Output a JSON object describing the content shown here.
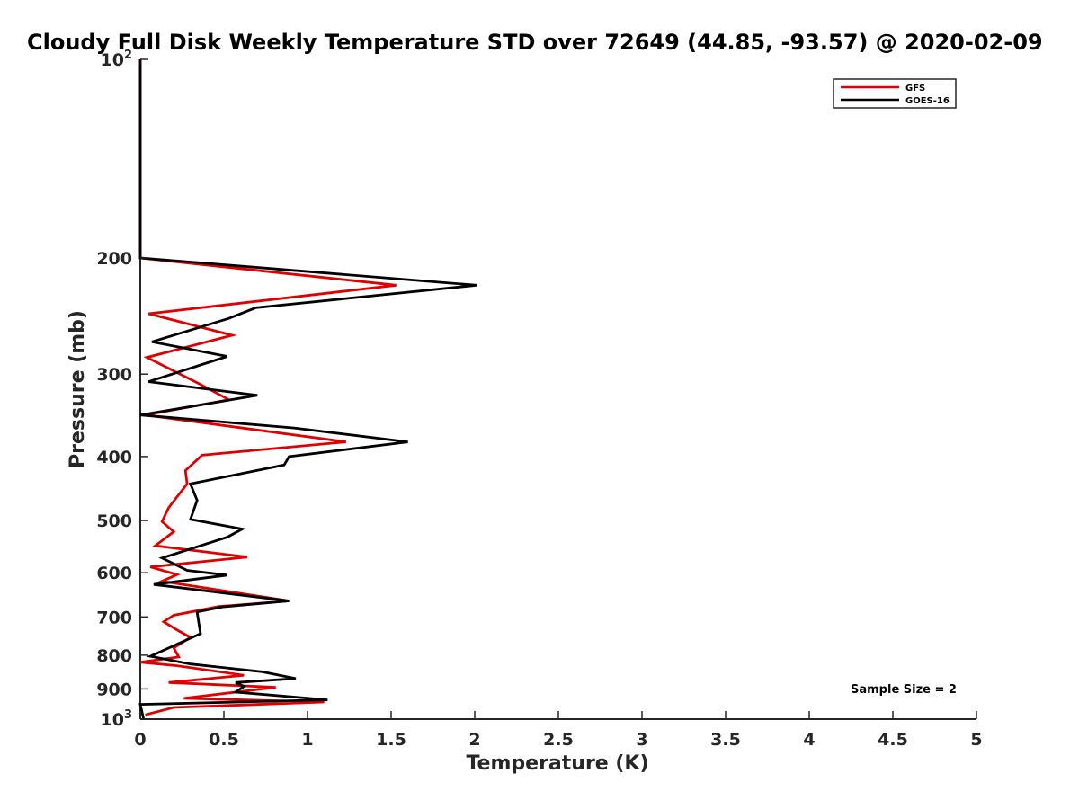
{
  "chart_data": {
    "type": "line",
    "title": "Cloudy Full Disk Weekly Temperature STD over 72649 (44.85, -93.57) @ 2020-02-09",
    "xlabel": "Temperature (K)",
    "ylabel": "Pressure (mb)",
    "xlim": [
      0,
      5
    ],
    "ylim": [
      100,
      1000
    ],
    "y_scale": "log",
    "y_reversed": true,
    "x_ticks": [
      0,
      0.5,
      1,
      1.5,
      2,
      2.5,
      3,
      3.5,
      4,
      4.5,
      5
    ],
    "x_tick_labels": [
      "0",
      "0.5",
      "1",
      "1.5",
      "2",
      "2.5",
      "3",
      "3.5",
      "4",
      "4.5",
      "5"
    ],
    "y_ticks": [
      {
        "value": 100,
        "base": "10",
        "exp": "2"
      },
      {
        "value": 200,
        "label": "200"
      },
      {
        "value": 300,
        "label": "300"
      },
      {
        "value": 400,
        "label": "400"
      },
      {
        "value": 500,
        "label": "500"
      },
      {
        "value": 600,
        "label": "600"
      },
      {
        "value": 700,
        "label": "700"
      },
      {
        "value": 800,
        "label": "800"
      },
      {
        "value": 900,
        "label": "900"
      },
      {
        "value": 1000,
        "base": "10",
        "exp": "3"
      }
    ],
    "grid": false,
    "legend_position": "top-right",
    "annotation": "Sample Size = 2",
    "series": [
      {
        "name": "GFS",
        "color": "#e00000",
        "points": [
          [
            0,
            100
          ],
          [
            0,
            200
          ],
          [
            1.53,
            220
          ],
          [
            0.05,
            243
          ],
          [
            0.55,
            262
          ],
          [
            0.04,
            283
          ],
          [
            0.35,
            310
          ],
          [
            0.53,
            328
          ],
          [
            0.03,
            346
          ],
          [
            1.23,
            380
          ],
          [
            0.37,
            398
          ],
          [
            0.27,
            420
          ],
          [
            0.28,
            440
          ],
          [
            0.17,
            478
          ],
          [
            0.13,
            502
          ],
          [
            0.2,
            520
          ],
          [
            0.09,
            546
          ],
          [
            0.64,
            568
          ],
          [
            0.06,
            588
          ],
          [
            0.22,
            604
          ],
          [
            0.13,
            618
          ],
          [
            0.89,
            662
          ],
          [
            0.47,
            675
          ],
          [
            0.2,
            696
          ],
          [
            0.14,
            712
          ],
          [
            0.23,
            735
          ],
          [
            0.3,
            752
          ],
          [
            0.2,
            780
          ],
          [
            0.23,
            805
          ],
          [
            0.0,
            820
          ],
          [
            0.22,
            830
          ],
          [
            0.62,
            858
          ],
          [
            0.17,
            880
          ],
          [
            0.81,
            895
          ],
          [
            0.26,
            930
          ],
          [
            1.1,
            942
          ],
          [
            0.2,
            960
          ],
          [
            0.03,
            985
          ]
        ]
      },
      {
        "name": "GOES-16",
        "color": "#000000",
        "points": [
          [
            0,
            100
          ],
          [
            0,
            200
          ],
          [
            2.01,
            220
          ],
          [
            0.69,
            238
          ],
          [
            0.53,
            247
          ],
          [
            0.07,
            268
          ],
          [
            0.52,
            282
          ],
          [
            0.05,
            308
          ],
          [
            0.7,
            323
          ],
          [
            0.0,
            346
          ],
          [
            0.92,
            362
          ],
          [
            1.6,
            380
          ],
          [
            0.89,
            400
          ],
          [
            0.86,
            412
          ],
          [
            0.3,
            440
          ],
          [
            0.34,
            466
          ],
          [
            0.3,
            498
          ],
          [
            0.61,
            515
          ],
          [
            0.52,
            530
          ],
          [
            0.13,
            570
          ],
          [
            0.28,
            595
          ],
          [
            0.52,
            605
          ],
          [
            0.08,
            625
          ],
          [
            0.89,
            662
          ],
          [
            0.49,
            676
          ],
          [
            0.34,
            688
          ],
          [
            0.35,
            715
          ],
          [
            0.36,
            742
          ],
          [
            0.06,
            803
          ],
          [
            0.3,
            825
          ],
          [
            0.73,
            848
          ],
          [
            0.93,
            868
          ],
          [
            0.57,
            880
          ],
          [
            0.62,
            892
          ],
          [
            0.57,
            910
          ],
          [
            1.12,
            935
          ],
          [
            0.0,
            950
          ],
          [
            0.02,
            1000
          ]
        ]
      }
    ]
  }
}
